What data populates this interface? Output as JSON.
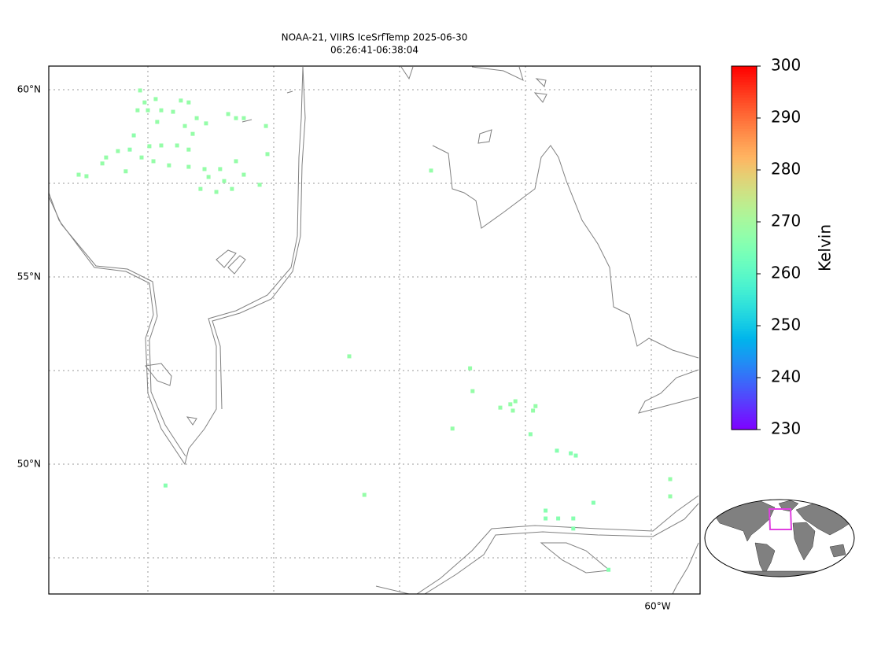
{
  "chart_data": {
    "type": "map",
    "title": [
      "NOAA-21, VIIRS IceSrfTemp 2025-06-30",
      "06:26:41-06:38:04"
    ],
    "lat_ticks": [
      {
        "value": 60,
        "label": "60°N"
      },
      {
        "value": 55,
        "label": "55°N"
      },
      {
        "value": 50,
        "label": "50°N"
      }
    ],
    "lon_ticks": [
      {
        "value": -60,
        "label": "60°W"
      }
    ],
    "lat_gridlines": [
      47.5,
      50,
      52.5,
      55,
      57.5,
      60
    ],
    "lon_gridlines": [
      -80,
      -75,
      -70,
      -65,
      -60
    ],
    "grid": true,
    "colormap": "rainbow",
    "clim": [
      230,
      300
    ],
    "colorbar_ticks": [
      230,
      240,
      250,
      260,
      270,
      280,
      290,
      300
    ],
    "colorbar_label": "Kelvin",
    "points": {
      "lon": [
        -80.31,
        -80.13,
        -79.69,
        -78.69,
        -78.38,
        -80.41,
        -80.0,
        -79.47,
        -79.0,
        -78.06,
        -77.69,
        -76.81,
        -76.5,
        -76.19,
        -75.31,
        -79.63,
        -78.53,
        -78.22,
        -78.84,
        -78.38,
        -80.56,
        -79.94,
        -79.47,
        -80.25,
        -80.72,
        -81.19,
        -81.66,
        -81.81,
        -80.88,
        -79.78,
        -79.16,
        -78.38,
        -77.75,
        -77.13,
        -76.5,
        -76.19,
        -76.66,
        -77.28,
        -77.91,
        -82.75,
        -82.44,
        -75.25,
        -75.56,
        -76.97,
        -77.59,
        -72.0,
        -67.2,
        -67.1,
        -67.9,
        -66.0,
        -65.6,
        -65.4,
        -65.5,
        -64.7,
        -64.6,
        -64.8,
        -63.75,
        -63.2,
        -63.0,
        -71.4,
        -79.3,
        -59.25,
        -59.25,
        -62.3,
        -64.2,
        -64.2,
        -63.7,
        -63.1,
        -63.1,
        -61.7,
        -68.75
      ],
      "lat": [
        59.98,
        59.66,
        59.75,
        59.71,
        59.66,
        59.45,
        59.45,
        59.45,
        59.41,
        59.24,
        59.1,
        59.35,
        59.24,
        59.24,
        59.03,
        59.14,
        59.03,
        58.82,
        58.51,
        58.4,
        58.78,
        58.49,
        58.51,
        58.19,
        58.4,
        58.36,
        58.19,
        58.03,
        57.82,
        58.09,
        57.98,
        57.94,
        57.88,
        57.88,
        58.09,
        57.73,
        57.35,
        57.27,
        57.35,
        57.73,
        57.69,
        58.28,
        57.46,
        57.56,
        57.67,
        52.88,
        52.56,
        51.95,
        50.95,
        51.51,
        51.6,
        51.68,
        51.43,
        51.43,
        51.55,
        50.8,
        50.36,
        50.29,
        50.23,
        49.18,
        49.43,
        49.6,
        49.14,
        48.97,
        48.76,
        48.55,
        48.55,
        48.55,
        48.28,
        47.18,
        57.84
      ],
      "values": [
        268,
        268,
        268,
        268,
        268,
        268,
        268,
        268,
        268,
        268,
        268,
        268,
        268,
        268,
        268,
        268,
        268,
        268,
        268,
        268,
        267,
        268,
        268,
        268,
        267,
        268,
        268,
        268,
        268,
        268,
        268,
        268,
        268,
        268,
        268,
        268,
        268,
        268,
        268,
        268,
        268,
        268,
        268,
        268,
        268,
        268,
        268,
        268,
        268,
        268,
        268,
        268,
        268,
        268,
        268,
        267,
        266,
        266,
        266,
        268,
        266,
        268,
        268,
        266,
        266,
        266,
        266,
        266,
        266,
        266,
        268
      ]
    }
  }
}
